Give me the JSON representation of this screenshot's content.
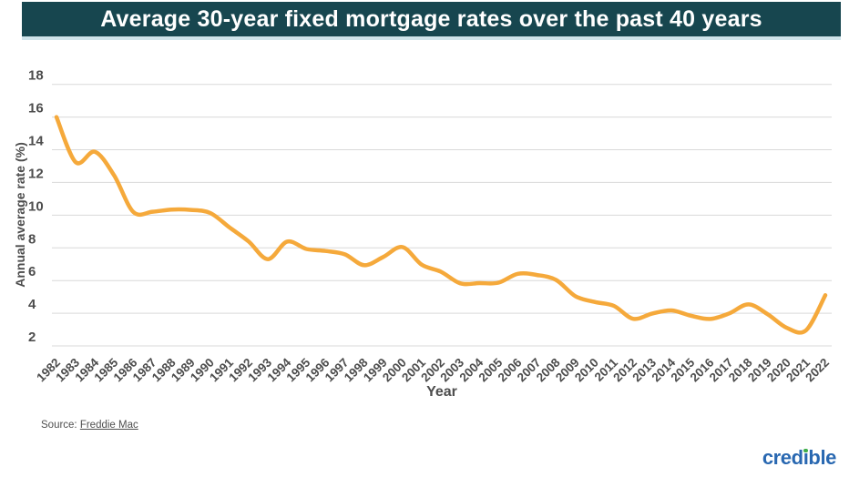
{
  "header": {
    "title": "Average 30-year fixed mortgage rates over the past 40 years"
  },
  "footer": {
    "source_prefix": "Source: ",
    "source_link": "Freddie Mac",
    "logo": {
      "part1": "cred",
      "i_char": "ı",
      "part2": "ble",
      "dot_icon": "green-dot"
    }
  },
  "colors": {
    "banner_bg": "#17464F",
    "banner_edge": "#CFE3EA",
    "line": "#F5A93B",
    "grid": "#D9D9D9",
    "tick_text": "#4D4D4D",
    "logo_blue": "#2968B1",
    "logo_green": "#3FAE49"
  },
  "chart_data": {
    "type": "line",
    "title": "Average 30-year fixed mortgage rates over the past 40 years",
    "xlabel": "Year",
    "ylabel": "Annual average rate (%)",
    "categories": [
      "1982",
      "1983",
      "1984",
      "1985",
      "1986",
      "1987",
      "1988",
      "1989",
      "1990",
      "1991",
      "1992",
      "1993",
      "1994",
      "1995",
      "1996",
      "1997",
      "1998",
      "1999",
      "2000",
      "2001",
      "2002",
      "2003",
      "2004",
      "2005",
      "2006",
      "2007",
      "2008",
      "2009",
      "2010",
      "2011",
      "2012",
      "2013",
      "2014",
      "2015",
      "2016",
      "2017",
      "2018",
      "2019",
      "2020",
      "2021",
      "2022"
    ],
    "series": [
      {
        "name": "Average 30-year fixed mortgage rate (%)",
        "values": [
          16.0,
          13.24,
          13.88,
          12.43,
          10.19,
          10.21,
          10.34,
          10.32,
          10.13,
          9.25,
          8.39,
          7.31,
          8.38,
          7.93,
          7.81,
          7.6,
          6.94,
          7.44,
          8.05,
          6.97,
          6.54,
          5.83,
          5.84,
          5.87,
          6.41,
          6.34,
          6.03,
          5.04,
          4.69,
          4.45,
          3.66,
          3.98,
          4.17,
          3.85,
          3.65,
          3.99,
          4.54,
          3.94,
          3.1,
          2.96,
          5.1
        ]
      }
    ],
    "ylim": [
      2,
      18
    ],
    "y_ticks": [
      18,
      16,
      14,
      12,
      10,
      8,
      6,
      4,
      2
    ],
    "grid": "horizontal",
    "legend": "none",
    "line_color": "#F5A93B",
    "smoothing": "spline"
  }
}
